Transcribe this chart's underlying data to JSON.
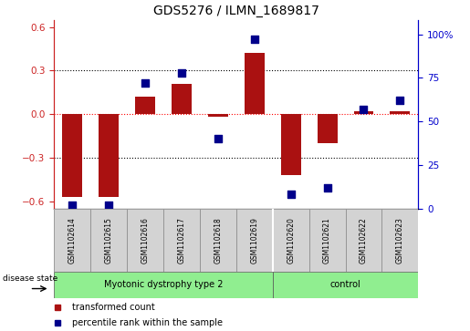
{
  "title": "GDS5276 / ILMN_1689817",
  "samples": [
    "GSM1102614",
    "GSM1102615",
    "GSM1102616",
    "GSM1102617",
    "GSM1102618",
    "GSM1102619",
    "GSM1102620",
    "GSM1102621",
    "GSM1102622",
    "GSM1102623"
  ],
  "transformed_count": [
    -0.57,
    -0.57,
    0.12,
    0.21,
    -0.02,
    0.42,
    -0.42,
    -0.2,
    0.02,
    0.02
  ],
  "percentile_rank": [
    2,
    2,
    72,
    78,
    40,
    97,
    8,
    12,
    57,
    62
  ],
  "groups": [
    {
      "label": "Myotonic dystrophy type 2",
      "start": 0,
      "end": 6
    },
    {
      "label": "control",
      "start": 6,
      "end": 10
    }
  ],
  "bar_color": "#AA1111",
  "scatter_color": "#00008B",
  "ylim_left": [
    -0.65,
    0.65
  ],
  "ylim_right": [
    0,
    108.3
  ],
  "yticks_left": [
    -0.6,
    -0.3,
    0.0,
    0.3,
    0.6
  ],
  "yticks_right": [
    0,
    25,
    50,
    75,
    100
  ],
  "ytick_labels_right": [
    "0",
    "25",
    "50",
    "75",
    "100%"
  ],
  "left_tick_color": "#CC2222",
  "right_tick_color": "#0000CC",
  "legend_items": [
    {
      "label": "transformed count",
      "color": "#AA1111"
    },
    {
      "label": "percentile rank within the sample",
      "color": "#00008B"
    }
  ],
  "bar_width": 0.55,
  "scatter_size": 28,
  "disease_state_label": "disease state"
}
